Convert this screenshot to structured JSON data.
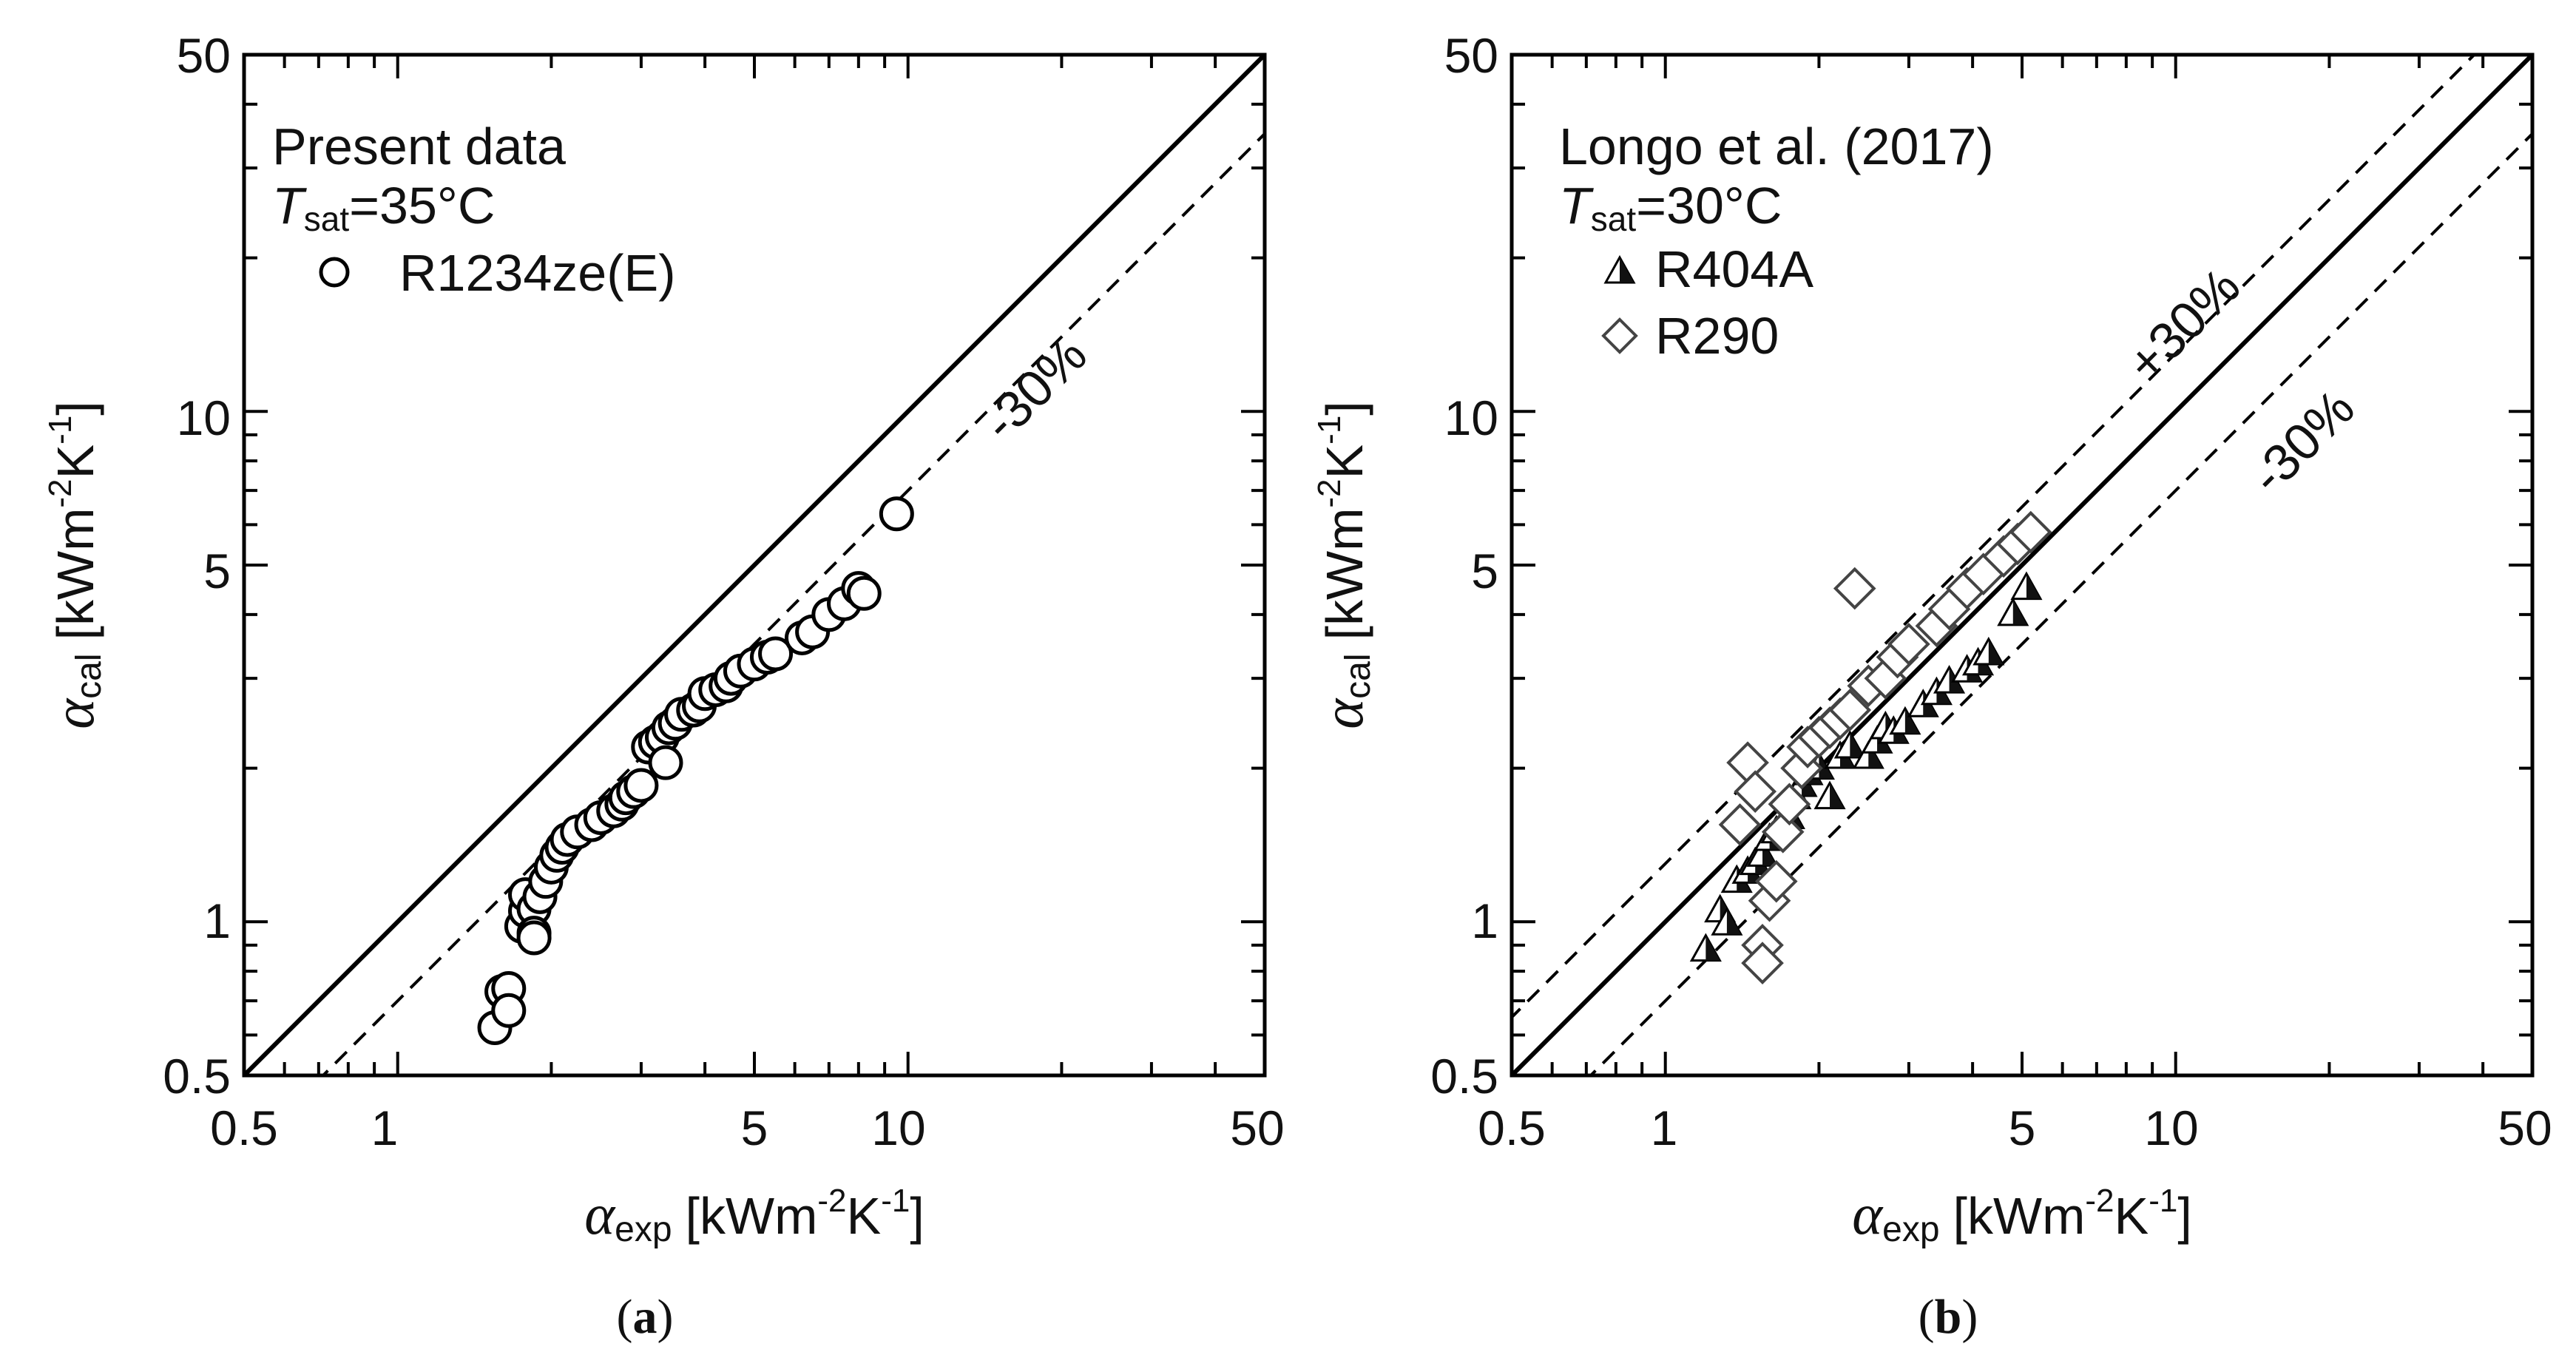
{
  "chart_data": [
    {
      "type": "scatter",
      "panel_caption_open": "(",
      "panel_caption_letter": "a",
      "panel_caption_close": ")",
      "scale": "log-log",
      "xlim": [
        0.5,
        50
      ],
      "ylim": [
        0.5,
        50
      ],
      "x_ticks": [
        0.5,
        1,
        5,
        10,
        50
      ],
      "y_ticks": [
        0.5,
        1,
        5,
        10,
        50
      ],
      "x_tick_labels": [
        "0.5",
        "1",
        "5",
        "10",
        "50"
      ],
      "y_tick_labels": [
        "0.5",
        "1",
        "5",
        "10",
        "50"
      ],
      "xlabel": {
        "symbol": "α",
        "sub": "exp",
        "unit_pre": "[kWm",
        "exp1": "-2",
        "unit_mid": "K",
        "exp2": "-1",
        "unit_post": "]"
      },
      "ylabel": {
        "symbol": "α",
        "sub": "cal",
        "unit_pre": "[kWm",
        "exp1": "-2",
        "unit_mid": "K",
        "exp2": "-1",
        "unit_post": "]"
      },
      "legend": {
        "title": "Present data",
        "condition": {
          "symbol": "T",
          "sub": "sat",
          "value": "=35°C"
        },
        "entries": [
          {
            "marker": "circle-open",
            "label": "R1234ze(E)"
          }
        ]
      },
      "reference_lines": [
        {
          "style": "solid",
          "factor": 1.0,
          "label": ""
        },
        {
          "style": "dashed",
          "factor": 0.7,
          "label": "-30%"
        }
      ],
      "series": [
        {
          "name": "R1234ze(E)",
          "marker": "circle-open",
          "points": [
            [
              1.55,
              0.62
            ],
            [
              1.6,
              0.73
            ],
            [
              1.65,
              0.74
            ],
            [
              1.65,
              0.67
            ],
            [
              1.75,
              0.98
            ],
            [
              1.78,
              1.05
            ],
            [
              1.78,
              1.13
            ],
            [
              1.85,
              1.06
            ],
            [
              1.85,
              0.95
            ],
            [
              1.85,
              0.93
            ],
            [
              1.9,
              1.12
            ],
            [
              1.95,
              1.2
            ],
            [
              2.0,
              1.28
            ],
            [
              2.05,
              1.35
            ],
            [
              2.1,
              1.4
            ],
            [
              2.15,
              1.45
            ],
            [
              2.25,
              1.5
            ],
            [
              2.4,
              1.55
            ],
            [
              2.5,
              1.6
            ],
            [
              2.65,
              1.65
            ],
            [
              2.75,
              1.7
            ],
            [
              2.8,
              1.75
            ],
            [
              2.9,
              1.8
            ],
            [
              3.0,
              1.85
            ],
            [
              3.1,
              2.2
            ],
            [
              3.2,
              2.25
            ],
            [
              3.3,
              2.3
            ],
            [
              3.35,
              2.05
            ],
            [
              3.4,
              2.4
            ],
            [
              3.5,
              2.45
            ],
            [
              3.6,
              2.55
            ],
            [
              3.8,
              2.6
            ],
            [
              3.9,
              2.65
            ],
            [
              4.0,
              2.8
            ],
            [
              4.2,
              2.85
            ],
            [
              4.4,
              2.9
            ],
            [
              4.5,
              3.0
            ],
            [
              4.7,
              3.1
            ],
            [
              5.0,
              3.2
            ],
            [
              5.3,
              3.3
            ],
            [
              5.5,
              3.35
            ],
            [
              6.2,
              3.6
            ],
            [
              6.5,
              3.7
            ],
            [
              7.0,
              4.0
            ],
            [
              7.5,
              4.2
            ],
            [
              8.0,
              4.5
            ],
            [
              8.2,
              4.4
            ],
            [
              9.5,
              6.3
            ]
          ]
        }
      ]
    },
    {
      "type": "scatter",
      "panel_caption_open": "(",
      "panel_caption_letter": "b",
      "panel_caption_close": ")",
      "scale": "log-log",
      "xlim": [
        0.5,
        50
      ],
      "ylim": [
        0.5,
        50
      ],
      "x_ticks": [
        0.5,
        1,
        5,
        10,
        50
      ],
      "y_ticks": [
        0.5,
        1,
        5,
        10,
        50
      ],
      "x_tick_labels": [
        "0.5",
        "1",
        "5",
        "10",
        "50"
      ],
      "y_tick_labels": [
        "0.5",
        "1",
        "5",
        "10",
        "50"
      ],
      "xlabel": {
        "symbol": "α",
        "sub": "exp",
        "unit_pre": "[kWm",
        "exp1": "-2",
        "unit_mid": "K",
        "exp2": "-1",
        "unit_post": "]"
      },
      "ylabel": {
        "symbol": "α",
        "sub": "cal",
        "unit_pre": "[kWm",
        "exp1": "-2",
        "unit_mid": "K",
        "exp2": "-1",
        "unit_post": "]"
      },
      "legend": {
        "title": "Longo et al. (2017)",
        "condition": {
          "symbol": "T",
          "sub": "sat",
          "value": "=30°C"
        },
        "entries": [
          {
            "marker": "triangle-half",
            "label": "R404A"
          },
          {
            "marker": "diamond-open",
            "label": "R290"
          }
        ]
      },
      "reference_lines": [
        {
          "style": "solid",
          "factor": 1.0,
          "label": ""
        },
        {
          "style": "dashed",
          "factor": 1.3,
          "label": "+30%"
        },
        {
          "style": "dashed",
          "factor": 0.7,
          "label": "-30%"
        }
      ],
      "series": [
        {
          "name": "R404A",
          "marker": "triangle-half",
          "points": [
            [
              1.2,
              0.88
            ],
            [
              1.28,
              1.05
            ],
            [
              1.32,
              0.99
            ],
            [
              1.38,
              1.2
            ],
            [
              1.45,
              1.25
            ],
            [
              1.5,
              1.3
            ],
            [
              1.55,
              1.35
            ],
            [
              1.6,
              1.45
            ],
            [
              1.65,
              1.5
            ],
            [
              1.7,
              1.55
            ],
            [
              1.75,
              1.6
            ],
            [
              1.8,
              1.75
            ],
            [
              1.85,
              1.85
            ],
            [
              1.9,
              1.95
            ],
            [
              2.0,
              2.0
            ],
            [
              2.1,
              1.75
            ],
            [
              2.2,
              2.1
            ],
            [
              2.3,
              2.2
            ],
            [
              2.5,
              2.1
            ],
            [
              2.6,
              2.25
            ],
            [
              2.7,
              2.4
            ],
            [
              2.8,
              2.35
            ],
            [
              2.95,
              2.45
            ],
            [
              3.2,
              2.65
            ],
            [
              3.4,
              2.8
            ],
            [
              3.6,
              2.95
            ],
            [
              3.9,
              3.1
            ],
            [
              4.1,
              3.2
            ],
            [
              4.3,
              3.35
            ],
            [
              4.8,
              4.0
            ],
            [
              5.1,
              4.5
            ]
          ]
        },
        {
          "name": "R290",
          "marker": "diamond-open",
          "points": [
            [
              1.4,
              1.55
            ],
            [
              1.45,
              2.05
            ],
            [
              1.5,
              1.8
            ],
            [
              1.55,
              0.9
            ],
            [
              1.55,
              0.83
            ],
            [
              1.6,
              1.1
            ],
            [
              1.65,
              1.2
            ],
            [
              1.7,
              1.5
            ],
            [
              1.75,
              1.7
            ],
            [
              1.85,
              2.0
            ],
            [
              1.9,
              2.2
            ],
            [
              2.0,
              2.3
            ],
            [
              2.1,
              2.4
            ],
            [
              2.2,
              2.5
            ],
            [
              2.3,
              2.6
            ],
            [
              2.35,
              4.5
            ],
            [
              2.5,
              2.9
            ],
            [
              2.7,
              3.0
            ],
            [
              2.85,
              3.3
            ],
            [
              3.0,
              3.5
            ],
            [
              3.4,
              3.8
            ],
            [
              3.6,
              4.1
            ],
            [
              3.9,
              4.5
            ],
            [
              4.2,
              4.8
            ],
            [
              4.6,
              5.2
            ],
            [
              4.9,
              5.5
            ],
            [
              5.2,
              5.8
            ]
          ]
        }
      ]
    }
  ]
}
